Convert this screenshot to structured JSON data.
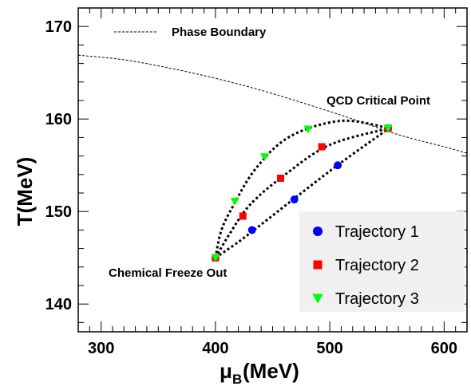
{
  "chart_data": {
    "type": "scatter",
    "xlabel": "μ_B(MeV)",
    "ylabel": "T(MeV)",
    "xlim": [
      280,
      620
    ],
    "ylim": [
      137,
      172
    ],
    "x_ticks": [
      300,
      400,
      500,
      600
    ],
    "y_ticks": [
      140,
      150,
      160,
      170
    ],
    "grid": false,
    "legend_position": "bottom-right",
    "phase_boundary": {
      "name": "Phase Boundary",
      "style": "dashed",
      "x": [
        280,
        320,
        360,
        400,
        440,
        480,
        520,
        560,
        600,
        620
      ],
      "y": [
        166.9,
        166.4,
        165.5,
        164.4,
        163.1,
        161.6,
        160.0,
        158.3,
        157.0,
        156.3
      ]
    },
    "trajectory_curves": [
      {
        "x": [
          400,
          420,
          440,
          470,
          510,
          552
        ],
        "y": [
          145.0,
          146.7,
          148.6,
          151.5,
          155.3,
          159.0
        ]
      },
      {
        "x": [
          400,
          412,
          430,
          460,
          500,
          552
        ],
        "y": [
          145.0,
          147.5,
          150.7,
          153.9,
          157.2,
          159.0
        ]
      },
      {
        "x": [
          400,
          405,
          415,
          435,
          465,
          510,
          552
        ],
        "y": [
          145.0,
          147.9,
          150.5,
          154.6,
          158.1,
          159.8,
          159.0
        ]
      }
    ],
    "series": [
      {
        "name": "Trajectory 1",
        "color": "#0000ff",
        "marker": "circle",
        "x": [
          400,
          432,
          469,
          507,
          551
        ],
        "y": [
          145.0,
          148.0,
          151.3,
          155.0,
          159.0
        ]
      },
      {
        "name": "Trajectory 2",
        "color": "#ff0000",
        "marker": "square",
        "x": [
          400,
          424,
          457,
          493,
          551
        ],
        "y": [
          145.0,
          149.5,
          153.6,
          157.0,
          159.0
        ]
      },
      {
        "name": "Trajectory 3",
        "color": "#00ff00",
        "marker": "triangle-down",
        "x": [
          400,
          417,
          443,
          481,
          551
        ],
        "y": [
          145.0,
          151.1,
          155.9,
          158.9,
          159.0
        ]
      }
    ],
    "annotations": {
      "critical_point": "QCD Critical Point",
      "freeze_out": "Chemical Freeze Out"
    }
  }
}
